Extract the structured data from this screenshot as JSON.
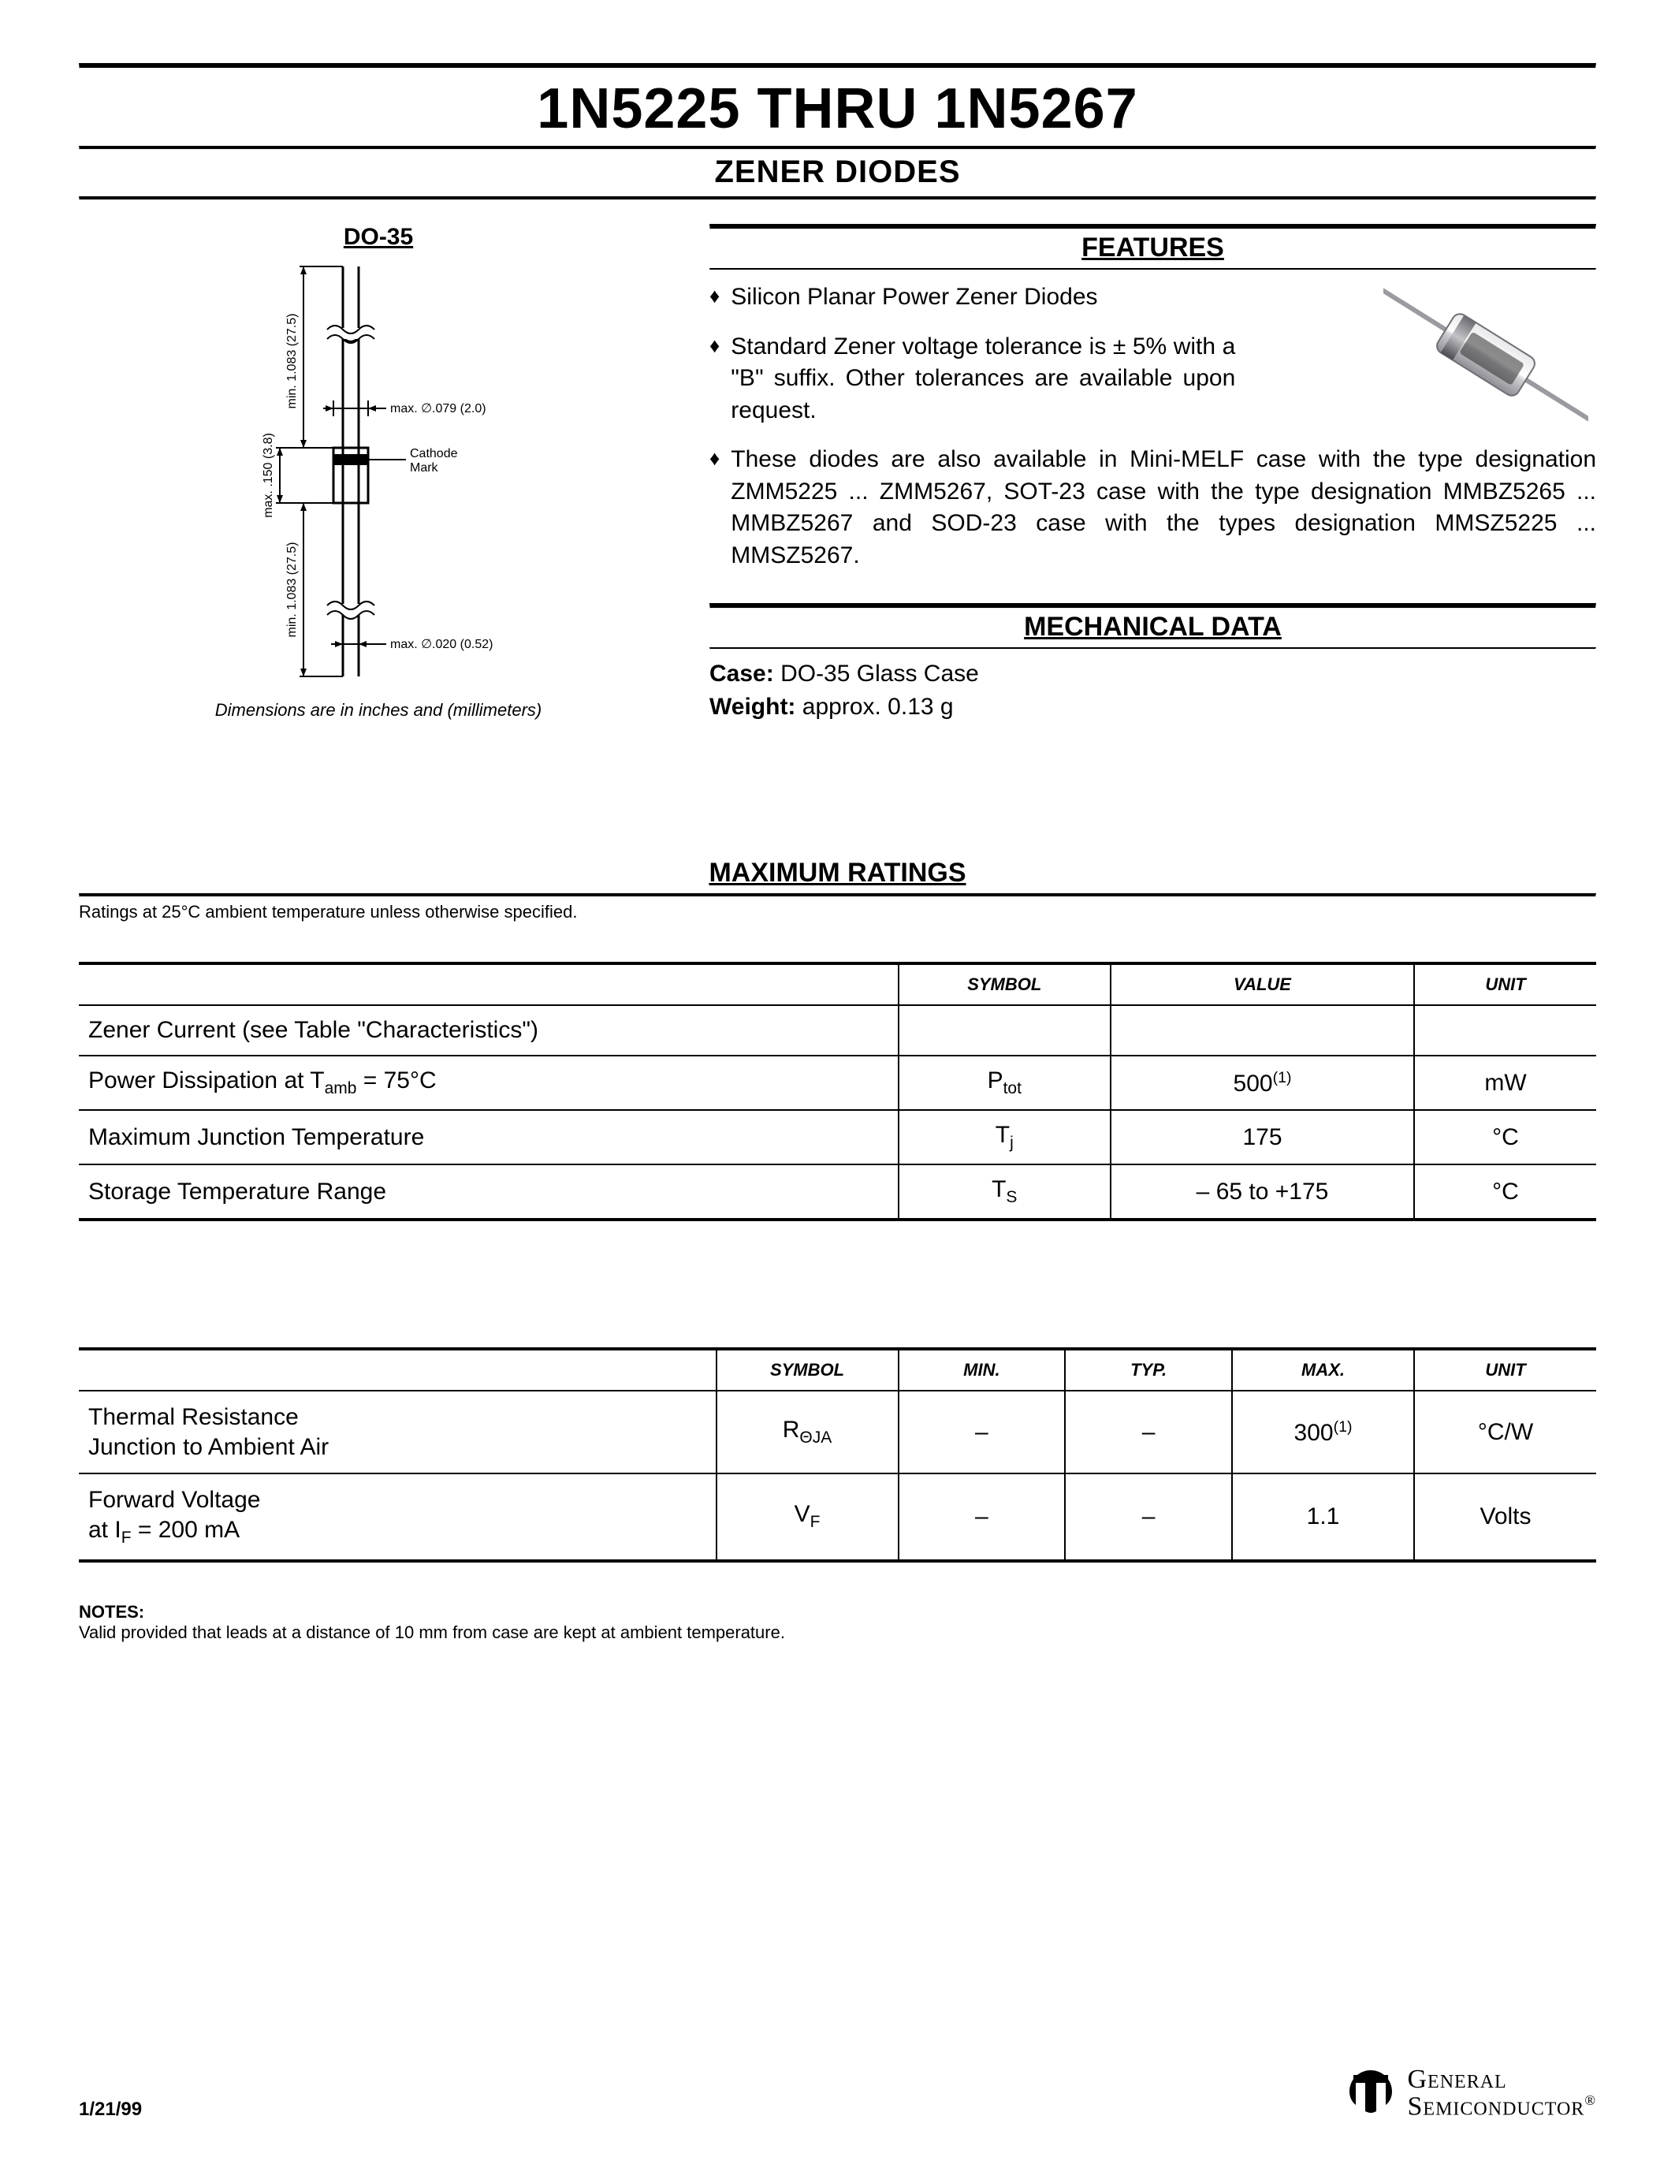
{
  "header": {
    "main_title": "1N5225 THRU 1N5267",
    "subtitle": "ZENER DIODES"
  },
  "package": {
    "label": "DO-35",
    "dims_note": "Dimensions are in inches and (millimeters)",
    "diagram": {
      "lead_len_label": "min. 1.083 (27.5)",
      "body_len_label": "max. .150 (3.8)",
      "lead_dia_label": "max. ∅.020 (0.52)",
      "body_dia_label": "max. ∅.079 (2.0)",
      "cathode_label": "Cathode Mark",
      "colors": {
        "line": "#000000",
        "body_fill": "#000000",
        "bg": "#ffffff"
      }
    }
  },
  "features": {
    "heading": "FEATURES",
    "items": [
      "Silicon Planar Power Zener Diodes",
      "Standard Zener voltage tolerance is ± 5% with a \"B\" suffix. Other tolerances are available upon request.",
      "These diodes are also available in Mini-MELF case with the type designation ZMM5225 ... ZMM5267, SOT-23 case with the type designation MMBZ5265 ... MMBZ5267 and SOD-23 case with the types designation MMSZ5225 ... MMSZ5267."
    ]
  },
  "mechanical": {
    "heading": "MECHANICAL DATA",
    "case_label": "Case:",
    "case_value": "DO-35 Glass Case",
    "weight_label": "Weight:",
    "weight_value": "approx. 0.13 g"
  },
  "ratings": {
    "heading": "MAXIMUM RATINGS",
    "note": "Ratings at 25°C ambient temperature unless otherwise specified.",
    "columns": [
      "",
      "SYMBOL",
      "VALUE",
      "UNIT"
    ],
    "col_widths": [
      "54%",
      "14%",
      "20%",
      "12%"
    ],
    "rows": [
      {
        "param": "Zener Current (see Table \"Characteristics\")",
        "symbol": "",
        "value": "",
        "unit": ""
      },
      {
        "param_html": "Power Dissipation at T<span class=\"sub\">amb</span> = 75°C",
        "symbol_html": "P<span class=\"sub\">tot</span>",
        "value_html": "500<span class=\"sup\">(1)</span>",
        "unit": "mW"
      },
      {
        "param": "Maximum Junction Temperature",
        "symbol_html": "T<span class=\"sub\">j</span>",
        "value": "175",
        "unit": "°C"
      },
      {
        "param": "Storage Temperature Range",
        "symbol_html": "T<span class=\"sub\">S</span>",
        "value": "– 65 to +175",
        "unit": "°C"
      }
    ]
  },
  "thermal": {
    "columns": [
      "",
      "SYMBOL",
      "MIN.",
      "TYP.",
      "MAX.",
      "UNIT"
    ],
    "col_widths": [
      "42%",
      "12%",
      "11%",
      "11%",
      "12%",
      "12%"
    ],
    "rows": [
      {
        "param_html": "Thermal Resistance<br>Junction to Ambient Air",
        "symbol_html": "R<span class=\"sub\">ΘJA</span>",
        "min": "–",
        "typ": "–",
        "max_html": "300<span class=\"sup\">(1)</span>",
        "unit": "°C/W"
      },
      {
        "param_html": "Forward Voltage<br>at I<span class=\"sub\">F</span> = 200 mA",
        "symbol_html": "V<span class=\"sub\">F</span>",
        "min": "–",
        "typ": "–",
        "max": "1.1",
        "unit": "Volts"
      }
    ]
  },
  "notes": {
    "heading": "NOTES:",
    "text": "Valid provided that leads at a distance of 10 mm from case are kept at ambient temperature."
  },
  "footer": {
    "date": "1/21/99",
    "logo_line1": "General",
    "logo_line2": "Semiconductor",
    "logo_reg": "®"
  },
  "colors": {
    "text": "#000000",
    "bg": "#ffffff",
    "rule": "#000000"
  }
}
